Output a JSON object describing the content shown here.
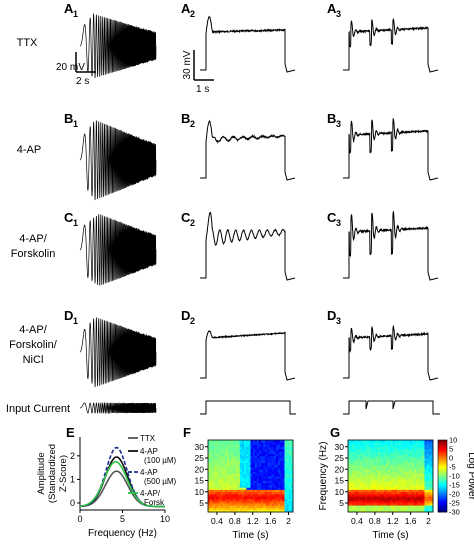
{
  "panel_labels": {
    "A1": "A",
    "A2": "A",
    "A3": "A",
    "B1": "B",
    "B2": "B",
    "B3": "B",
    "C1": "C",
    "C2": "C",
    "C3": "C",
    "D1": "D",
    "D2": "D",
    "D3": "D",
    "E": "E",
    "F": "F",
    "G": "G"
  },
  "subscripts": {
    "s1": "1",
    "s2": "2",
    "s3": "3"
  },
  "row_labels": {
    "ttx": "TTX",
    "ap4": "4-AP",
    "ap4_forsk_1": "4-AP/",
    "ap4_forsk_2": "Forskolin",
    "nicl_1": "4-AP/",
    "nicl_2": "Forskolin/",
    "nicl_3": "NiCl",
    "input": "Input Current"
  },
  "scale_bars": {
    "col1_v": "20 mV",
    "col1_t": "2 s",
    "col2_v": "30 mV",
    "col2_t": "1 s"
  },
  "chart_data": [
    {
      "type": "line",
      "panel": "E",
      "xlabel": "Frequency (Hz)",
      "ylabel": [
        "Amplitude",
        "(Standardized",
        "Z-Score)"
      ],
      "x_ticks": [
        0,
        5,
        10
      ],
      "y_ticks": [
        0,
        1,
        2
      ],
      "xlim": [
        0,
        10
      ],
      "ylim": [
        -0.3,
        2.8
      ],
      "legend": {
        "ttx": "TTX",
        "ap100_1": "4-AP",
        "ap100_2": "(100 µM)",
        "ap500_1": "4-AP",
        "ap500_2": "(500 µM)",
        "forsk_1": "4-AP/",
        "forsk_2": "Forsk"
      },
      "colors": {
        "ttx": "#555555",
        "ap100": "#111111",
        "ap500": "#1a2f8a",
        "forsk": "#33c24a"
      },
      "series": [
        {
          "name": "TTX",
          "peak_x": 4.3,
          "peak_y": 1.5,
          "width": 1.3
        },
        {
          "name": "4-AP (100 µM)",
          "peak_x": 4.3,
          "peak_y": 2.1,
          "width": 1.3
        },
        {
          "name": "4-AP (500 µM)",
          "peak_x": 4.3,
          "peak_y": 2.5,
          "width": 1.25
        },
        {
          "name": "4-AP/ Forsk",
          "peak_x": 4.2,
          "peak_y": 1.9,
          "width": 1.35
        }
      ]
    },
    {
      "type": "heatmap",
      "panel": "F",
      "xlabel": "Time (s)",
      "x_ticks": [
        "0.4",
        "0.8",
        "1.2",
        "1.6",
        "2"
      ],
      "y_ticks": [
        "5",
        "10",
        "15",
        "20",
        "25",
        "30"
      ],
      "xlim": [
        0.2,
        2.1
      ],
      "ylim": [
        1,
        33
      ]
    },
    {
      "type": "heatmap",
      "panel": "G",
      "xlabel": "Time (s)",
      "ylabel": "Frequency (Hz)",
      "x_ticks": [
        "0.4",
        "0.8",
        "1.2",
        "1.6",
        "2"
      ],
      "y_ticks": [
        "5",
        "10",
        "15",
        "20",
        "25",
        "30"
      ],
      "xlim": [
        0.2,
        2.1
      ],
      "ylim": [
        1,
        33
      ],
      "colorbar": {
        "label": "Log Power",
        "ticks": [
          "10",
          "5",
          "0",
          "-5",
          "-10",
          "-15",
          "-20",
          "-25",
          "-30"
        ],
        "range": [
          -30,
          10
        ]
      }
    }
  ]
}
